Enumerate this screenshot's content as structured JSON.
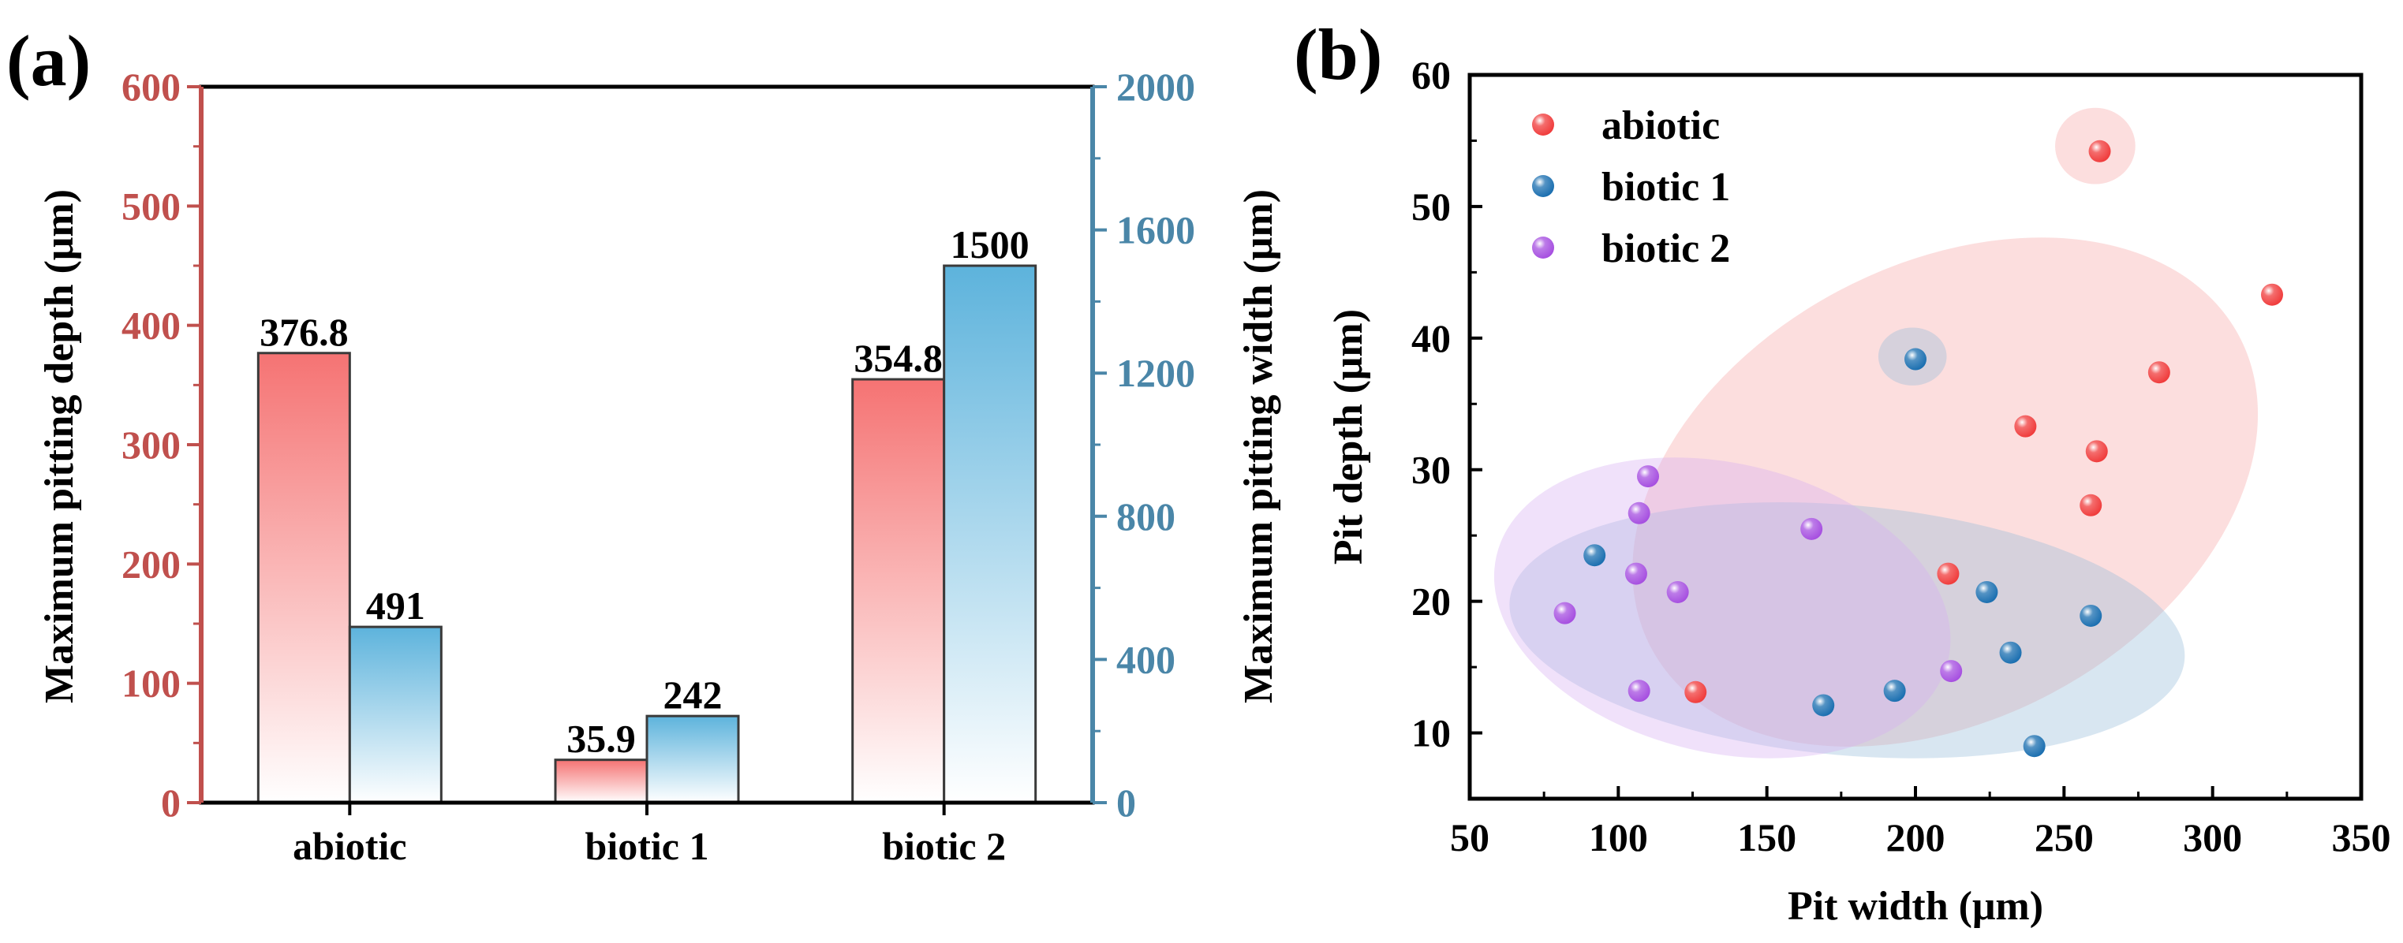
{
  "chart_data": [
    {
      "type": "bar",
      "panel_label": "(a)",
      "categories": [
        "abiotic",
        "biotic 1",
        "biotic 2"
      ],
      "series": [
        {
          "name": "Maximum pitting depth (μm)",
          "axis": "left",
          "values": [
            376.8,
            35.9,
            354.8
          ],
          "data_labels": [
            "376.8",
            "35.9",
            "354.8"
          ],
          "color": "#f57373"
        },
        {
          "name": "Maximum pitting width (μm)",
          "axis": "right",
          "values": [
            491,
            242,
            1500
          ],
          "data_labels": [
            "491",
            "242",
            "1500"
          ],
          "color": "#5db3dc"
        }
      ],
      "ylabel": "Maximum pitting depth (μm)",
      "y2label": "Maximum pitting width (μm)",
      "ylim": [
        0,
        600
      ],
      "y2lim": [
        0,
        2000
      ],
      "yticks": [
        "0",
        "100",
        "200",
        "300",
        "400",
        "500",
        "600"
      ],
      "y2ticks": [
        "0",
        "400",
        "800",
        "1200",
        "1600",
        "2000"
      ],
      "left_axis_color": "#c0504d",
      "right_axis_color": "#4a86a8",
      "grid": false
    },
    {
      "type": "scatter",
      "panel_label": "(b)",
      "xlabel": "Pit width (μm)",
      "ylabel": "Pit depth (μm)",
      "xlim": [
        50,
        350
      ],
      "ylim": [
        5,
        60
      ],
      "xticks": [
        "50",
        "100",
        "150",
        "200",
        "250",
        "300",
        "350"
      ],
      "yticks": [
        "10",
        "20",
        "30",
        "40",
        "50",
        "60"
      ],
      "legend_position": "top-left",
      "grid": false,
      "series": [
        {
          "name": "abiotic",
          "color": "#f03c3c",
          "points": [
            [
              262,
              54.2
            ],
            [
              320,
              43.3
            ],
            [
              282,
              37.4
            ],
            [
              237,
              33.3
            ],
            [
              261,
              31.4
            ],
            [
              259,
              27.3
            ],
            [
              211,
              22.1
            ],
            [
              126,
              13.1
            ]
          ],
          "ellipses": [
            {
              "cx": 260.5,
              "cy": 54.6,
              "rx": 13.5,
              "ry": 2.9,
              "angle": 0
            },
            {
              "cx": 210,
              "cy": 28.3,
              "rx": 112,
              "ry": 17.3,
              "angle": 28
            }
          ]
        },
        {
          "name": "biotic 1",
          "color": "#1b6fb0",
          "points": [
            [
              200,
              38.4
            ],
            [
              92,
              23.5
            ],
            [
              224,
              20.7
            ],
            [
              259,
              18.9
            ],
            [
              232,
              16.1
            ],
            [
              193,
              13.2
            ],
            [
              169,
              12.1
            ],
            [
              240,
              9.0
            ]
          ],
          "ellipses": [
            {
              "cx": 199,
              "cy": 38.6,
              "rx": 11.5,
              "ry": 2.2,
              "angle": 0
            },
            {
              "cx": 177,
              "cy": 17.8,
              "rx": 114,
              "ry": 9.5,
              "angle": -5
            }
          ]
        },
        {
          "name": "biotic 2",
          "color": "#a64fe0",
          "points": [
            [
              110,
              29.5
            ],
            [
              107,
              26.7
            ],
            [
              165,
              25.5
            ],
            [
              106,
              22.1
            ],
            [
              120,
              20.7
            ],
            [
              82,
              19.1
            ],
            [
              212,
              14.7
            ],
            [
              107,
              13.2
            ]
          ],
          "ellipses": [
            {
              "cx": 135,
              "cy": 19.5,
              "rx": 78,
              "ry": 11,
              "angle": -13
            }
          ]
        }
      ]
    }
  ]
}
